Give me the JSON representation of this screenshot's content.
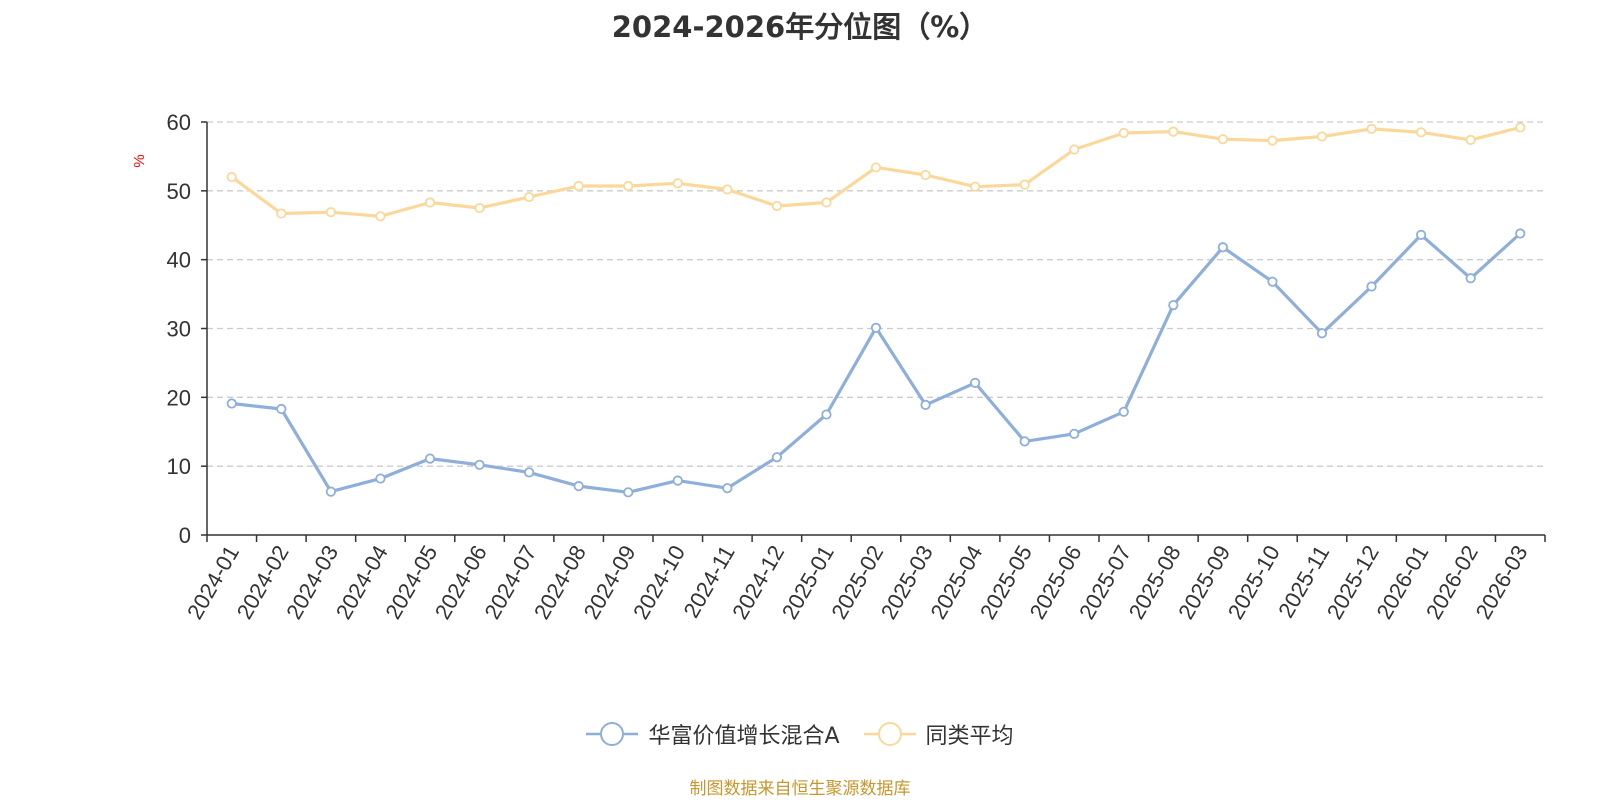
{
  "chart_data": {
    "type": "line",
    "title": "2024-2026年分位图（%）",
    "ylabel": "%",
    "xlabel": "",
    "ylim": [
      0,
      60
    ],
    "yticks": [
      0,
      10,
      20,
      30,
      40,
      50,
      60
    ],
    "grid": true,
    "legend_position": "bottom",
    "categories": [
      "2024-01",
      "2024-02",
      "2024-03",
      "2024-04",
      "2024-05",
      "2024-06",
      "2024-07",
      "2024-08",
      "2024-09",
      "2024-10",
      "2024-11",
      "2024-12",
      "2025-01",
      "2025-02",
      "2025-03",
      "2025-04",
      "2025-05",
      "2025-06",
      "2025-07",
      "2025-08",
      "2025-09",
      "2025-10",
      "2025-11",
      "2025-12",
      "2026-01",
      "2026-02",
      "2026-03"
    ],
    "series": [
      {
        "name": "华富价值增长混合A",
        "color": "#8eaedb",
        "values": [
          19.1,
          18.3,
          6.3,
          8.2,
          11.1,
          10.2,
          9.1,
          7.1,
          6.2,
          7.9,
          6.8,
          11.3,
          17.5,
          30.1,
          18.9,
          22.1,
          13.6,
          14.7,
          17.9,
          33.4,
          41.8,
          36.8,
          29.3,
          36.1,
          43.6,
          37.3,
          43.8
        ]
      },
      {
        "name": "同类平均",
        "color": "#fbd89a",
        "values": [
          52.0,
          46.7,
          46.9,
          46.3,
          48.3,
          47.5,
          49.1,
          50.7,
          50.7,
          51.1,
          50.2,
          47.8,
          48.3,
          53.4,
          52.3,
          50.6,
          50.9,
          56.0,
          58.4,
          58.6,
          57.5,
          57.3,
          57.9,
          59.0,
          58.5,
          57.4,
          59.2
        ]
      }
    ]
  },
  "source_text": "制图数据来自恒生聚源数据库",
  "colors": {
    "axis": "#333333",
    "grid": "#cccccc",
    "ylabel": "#ff0000",
    "source": "#c8962c"
  }
}
